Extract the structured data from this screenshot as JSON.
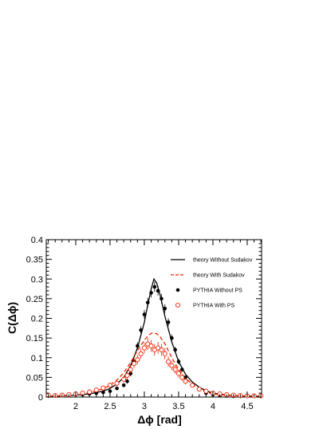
{
  "chart_data": {
    "type": "line",
    "title": "",
    "xlabel": "Δϕ [rad]",
    "ylabel": "C(Δϕ)",
    "xlim": [
      1.57,
      4.71
    ],
    "ylim": [
      0,
      0.4
    ],
    "grid": false,
    "legend_position": "top-right",
    "x_ticks": [
      {
        "value": 2,
        "label": "2"
      },
      {
        "value": 2.5,
        "label": "2.5"
      },
      {
        "value": 3,
        "label": "3"
      },
      {
        "value": 3.5,
        "label": "3.5"
      },
      {
        "value": 4,
        "label": "4"
      },
      {
        "value": 4.5,
        "label": "4.5"
      }
    ],
    "y_ticks": [
      {
        "value": 0,
        "label": "0"
      },
      {
        "value": 0.05,
        "label": "0.05"
      },
      {
        "value": 0.1,
        "label": "0.1"
      },
      {
        "value": 0.15,
        "label": "0.15"
      },
      {
        "value": 0.2,
        "label": "0.2"
      },
      {
        "value": 0.25,
        "label": "0.25"
      },
      {
        "value": 0.3,
        "label": "0.3"
      },
      {
        "value": 0.35,
        "label": "0.35"
      },
      {
        "value": 0.4,
        "label": "0.4"
      }
    ],
    "series": [
      {
        "name": "theory Without Sudakov",
        "style": "solid-line",
        "color": "#000000",
        "x": [
          1.6,
          1.8,
          2.0,
          2.2,
          2.4,
          2.5,
          2.6,
          2.7,
          2.8,
          2.9,
          3.0,
          3.05,
          3.1,
          3.14,
          3.18,
          3.23,
          3.3,
          3.4,
          3.5,
          3.6,
          3.7,
          3.8,
          3.9,
          4.0,
          4.2,
          4.4,
          4.6,
          4.7
        ],
        "y": [
          0.002,
          0.003,
          0.005,
          0.008,
          0.015,
          0.022,
          0.033,
          0.05,
          0.08,
          0.125,
          0.19,
          0.235,
          0.275,
          0.3,
          0.29,
          0.26,
          0.205,
          0.14,
          0.09,
          0.058,
          0.038,
          0.025,
          0.016,
          0.01,
          0.005,
          0.003,
          0.002,
          0.002
        ]
      },
      {
        "name": "theory With Sudakov",
        "style": "dashed-line",
        "color": "#ee2200",
        "x": [
          1.6,
          1.8,
          2.0,
          2.2,
          2.4,
          2.5,
          2.6,
          2.7,
          2.8,
          2.9,
          3.0,
          3.05,
          3.1,
          3.14,
          3.18,
          3.23,
          3.3,
          3.4,
          3.5,
          3.6,
          3.7,
          3.8,
          3.9,
          4.0,
          4.2,
          4.4,
          4.6,
          4.7
        ],
        "y": [
          0.002,
          0.003,
          0.006,
          0.011,
          0.021,
          0.03,
          0.043,
          0.062,
          0.088,
          0.118,
          0.145,
          0.155,
          0.162,
          0.163,
          0.161,
          0.153,
          0.135,
          0.1,
          0.07,
          0.048,
          0.032,
          0.021,
          0.013,
          0.008,
          0.004,
          0.003,
          0.002,
          0.002
        ]
      },
      {
        "name": "PYTHIA Without PS",
        "style": "filled-circle",
        "color": "#000000",
        "x": [
          1.6,
          1.7,
          1.8,
          1.9,
          2.0,
          2.1,
          2.2,
          2.3,
          2.4,
          2.5,
          2.6,
          2.7,
          2.75,
          2.8,
          2.85,
          2.9,
          2.95,
          3.0,
          3.05,
          3.1,
          3.15,
          3.2,
          3.25,
          3.3,
          3.35,
          3.4,
          3.45,
          3.5,
          3.55,
          3.6,
          3.7,
          3.8,
          3.9,
          4.0,
          4.1,
          4.2,
          4.3,
          4.4,
          4.5,
          4.6,
          4.7
        ],
        "y": [
          0.003,
          0.003,
          0.004,
          0.005,
          0.006,
          0.006,
          0.008,
          0.01,
          0.012,
          0.015,
          0.022,
          0.03,
          0.04,
          0.06,
          0.09,
          0.13,
          0.17,
          0.21,
          0.24,
          0.265,
          0.28,
          0.27,
          0.25,
          0.225,
          0.19,
          0.15,
          0.12,
          0.09,
          0.07,
          0.05,
          0.03,
          0.02,
          0.01,
          0.006,
          0.004,
          0.003,
          0.002,
          0.002,
          0.002,
          0.002,
          0.002
        ],
        "err": [
          0.002,
          0.002,
          0.002,
          0.002,
          0.002,
          0.002,
          0.003,
          0.003,
          0.003,
          0.004,
          0.004,
          0.005,
          0.006,
          0.007,
          0.008,
          0.009,
          0.01,
          0.011,
          0.012,
          0.012,
          0.013,
          0.012,
          0.012,
          0.011,
          0.01,
          0.009,
          0.008,
          0.007,
          0.006,
          0.005,
          0.004,
          0.003,
          0.003,
          0.002,
          0.002,
          0.002,
          0.002,
          0.002,
          0.002,
          0.002,
          0.002
        ]
      },
      {
        "name": "PYTHIA With PS",
        "style": "open-circle",
        "color": "#ee2200",
        "x": [
          1.6,
          1.7,
          1.8,
          1.9,
          2.0,
          2.1,
          2.2,
          2.3,
          2.4,
          2.5,
          2.6,
          2.7,
          2.75,
          2.8,
          2.85,
          2.9,
          2.95,
          3.0,
          3.05,
          3.1,
          3.15,
          3.2,
          3.25,
          3.3,
          3.35,
          3.4,
          3.45,
          3.5,
          3.55,
          3.6,
          3.7,
          3.8,
          3.9,
          4.0,
          4.1,
          4.2,
          4.3,
          4.4,
          4.5,
          4.6,
          4.7
        ],
        "y": [
          0.004,
          0.004,
          0.005,
          0.006,
          0.008,
          0.01,
          0.013,
          0.018,
          0.023,
          0.03,
          0.035,
          0.045,
          0.055,
          0.07,
          0.085,
          0.095,
          0.11,
          0.125,
          0.135,
          0.13,
          0.12,
          0.125,
          0.12,
          0.11,
          0.09,
          0.08,
          0.07,
          0.06,
          0.05,
          0.04,
          0.03,
          0.02,
          0.015,
          0.01,
          0.008,
          0.006,
          0.005,
          0.004,
          0.003,
          0.003,
          0.003
        ],
        "err": [
          0.003,
          0.003,
          0.003,
          0.003,
          0.004,
          0.004,
          0.005,
          0.005,
          0.006,
          0.006,
          0.007,
          0.008,
          0.009,
          0.01,
          0.011,
          0.012,
          0.013,
          0.014,
          0.015,
          0.015,
          0.015,
          0.015,
          0.015,
          0.014,
          0.013,
          0.012,
          0.011,
          0.01,
          0.009,
          0.008,
          0.006,
          0.005,
          0.004,
          0.004,
          0.003,
          0.003,
          0.003,
          0.003,
          0.003,
          0.003,
          0.003
        ]
      }
    ]
  }
}
